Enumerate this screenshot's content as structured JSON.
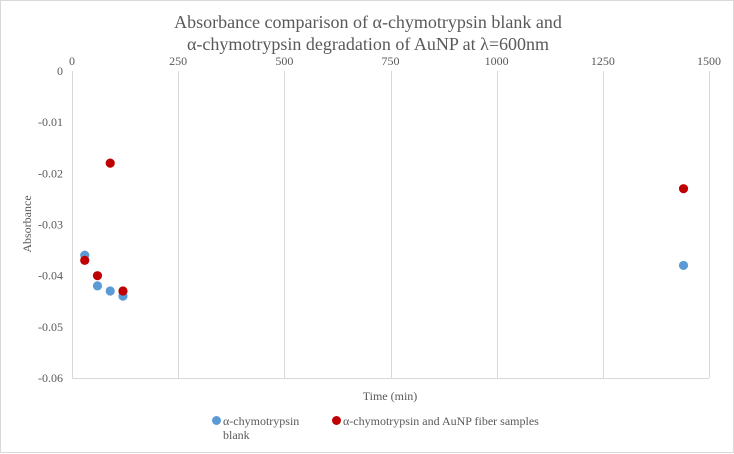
{
  "chart_data": {
    "type": "scatter",
    "title_lines": [
      "Absorbance comparison of α-chymotrypsin blank and",
      "α-chymotrypsin  degradation of AuNP at λ=600nm"
    ],
    "xlabel": "Time  (min)",
    "ylabel": "Absorbance",
    "xlim": [
      0,
      1500
    ],
    "ylim": [
      -0.06,
      0
    ],
    "x_ticks": [
      0,
      250,
      500,
      750,
      1000,
      1250,
      1500
    ],
    "y_ticks": [
      0,
      -0.01,
      -0.02,
      -0.03,
      -0.04,
      -0.05,
      -0.06
    ],
    "x_tick_labels": [
      "0",
      "250",
      "500",
      "750",
      "1000",
      "1250",
      "1500"
    ],
    "y_tick_labels": [
      "0",
      "-0.01",
      "-0.02",
      "-0.03",
      "-0.04",
      "-0.05",
      "-0.06"
    ],
    "grid": "vertical",
    "legend_position": "bottom",
    "series": [
      {
        "name": "α-chymotrypsin blank",
        "color": "#5b9bd5",
        "points": [
          {
            "x": 30,
            "y": -0.036
          },
          {
            "x": 60,
            "y": -0.042
          },
          {
            "x": 90,
            "y": -0.043
          },
          {
            "x": 120,
            "y": -0.044
          },
          {
            "x": 1440,
            "y": -0.038
          }
        ]
      },
      {
        "name": "α-chymotrypsin and AuNP fiber samples",
        "color": "#c00000",
        "points": [
          {
            "x": 30,
            "y": -0.037
          },
          {
            "x": 60,
            "y": -0.04
          },
          {
            "x": 90,
            "y": -0.018
          },
          {
            "x": 120,
            "y": -0.043
          },
          {
            "x": 1440,
            "y": -0.023
          }
        ]
      }
    ]
  }
}
